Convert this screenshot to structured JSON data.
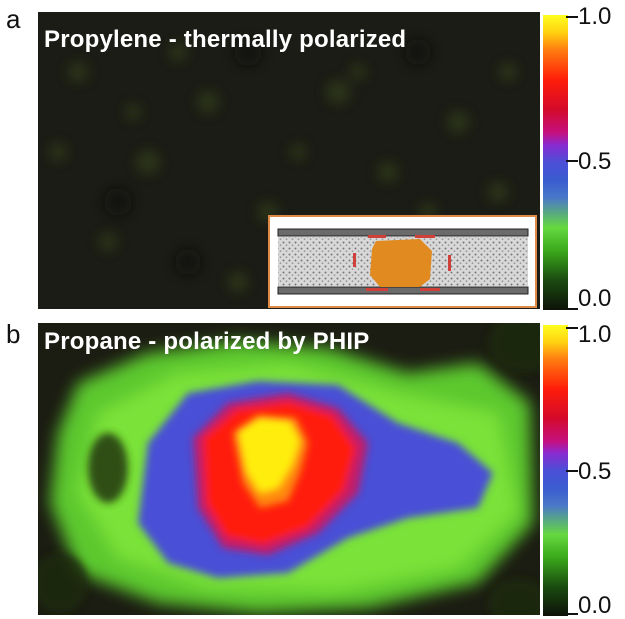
{
  "panels": [
    {
      "letter": "a",
      "title": "Propylene - thermally polarized",
      "colorbar": {
        "max_label": "1.0",
        "mid_label": "0.5",
        "min_label": "0.0"
      },
      "inset": {
        "description_icon": "reactor-cross-section-icon"
      }
    },
    {
      "letter": "b",
      "title": "Propane - polarized by PHIP",
      "colorbar": {
        "max_label": "1.0",
        "mid_label": "0.5",
        "min_label": "0.0"
      }
    }
  ],
  "colors": {
    "background_dark": "#1a1a14",
    "low_signal": "#66d840",
    "mid_signal": "#4b4fd8",
    "high_signal": "#ff1d0a",
    "peak_signal": "#ffff20",
    "inset_border": "#e08a48",
    "inset_catalyst": "#e08a20"
  }
}
